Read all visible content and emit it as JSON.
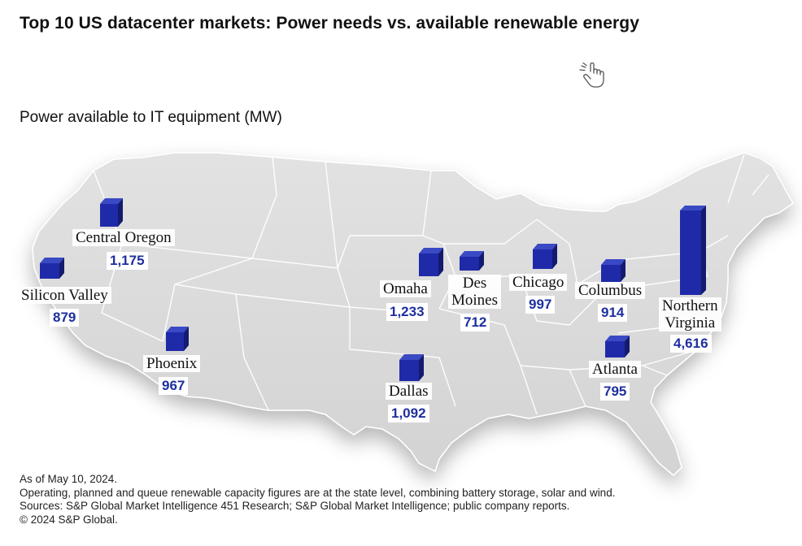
{
  "title": "Top 10 US datacenter markets: Power needs vs. available renewable energy",
  "subtitle": "Power available to IT equipment (MW)",
  "icon_hint": "pointer-hand-icon",
  "colors": {
    "bar": "#1f2aa8",
    "bar_dark": "#141a6e",
    "value_text": "#1e2f9e",
    "land": "#d9d9d9"
  },
  "chart_data": {
    "type": "map",
    "metric": "Power available to IT equipment (MW)",
    "markets": [
      {
        "name": "Central Oregon",
        "value": 1175,
        "value_label": "1,175"
      },
      {
        "name": "Silicon Valley",
        "value": 879,
        "value_label": "879"
      },
      {
        "name": "Phoenix",
        "value": 967,
        "value_label": "967"
      },
      {
        "name": "Omaha",
        "value": 1233,
        "value_label": "1,233"
      },
      {
        "name": "Des Moines",
        "value": 712,
        "value_label": "712"
      },
      {
        "name": "Chicago",
        "value": 997,
        "value_label": "997"
      },
      {
        "name": "Columbus",
        "value": 914,
        "value_label": "914"
      },
      {
        "name": "Northern Virginia",
        "value": 4616,
        "value_label": "4,616"
      },
      {
        "name": "Atlanta",
        "value": 795,
        "value_label": "795"
      },
      {
        "name": "Dallas",
        "value": 1092,
        "value_label": "1,092"
      }
    ]
  },
  "labels": {
    "central_oregon": {
      "name": "Central Oregon",
      "value": "1,175"
    },
    "silicon_valley": {
      "name": "Silicon Valley",
      "value": "879"
    },
    "phoenix": {
      "name": "Phoenix",
      "value": "967"
    },
    "omaha": {
      "name": "Omaha",
      "value": "1,233"
    },
    "des_moines": {
      "name1": "Des",
      "name2": "Moines",
      "value": "712"
    },
    "chicago": {
      "name": "Chicago",
      "value": "997"
    },
    "columbus": {
      "name": "Columbus",
      "value": "914"
    },
    "northern_virginia": {
      "name1": "Northern",
      "name2": "Virginia",
      "value": "4,616"
    },
    "atlanta": {
      "name": "Atlanta",
      "value": "795"
    },
    "dallas": {
      "name": "Dallas",
      "value": "1,092"
    }
  },
  "footer": {
    "line1": "As of May 10, 2024.",
    "line2": "Operating, planned and queue renewable capacity figures are at the state level, combining battery storage, solar and wind.",
    "line3": "Sources: S&P Global Market Intelligence 451 Research; S&P Global Market Intelligence; public company reports.",
    "line4": "© 2024 S&P Global."
  }
}
